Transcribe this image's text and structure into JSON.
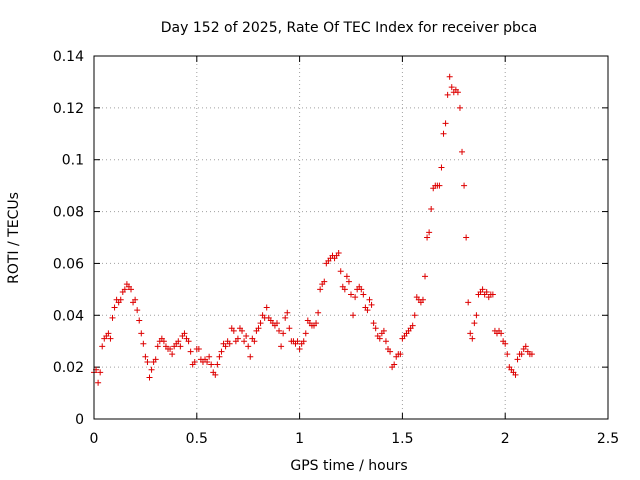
{
  "chart_data": {
    "type": "scatter",
    "title": "Day 152 of 2025, Rate Of TEC Index for receiver pbca",
    "xlabel": "GPS time / hours",
    "ylabel": "ROTI / TECUs",
    "xlim": [
      0,
      2.5
    ],
    "ylim": [
      0,
      0.14
    ],
    "xticks": [
      "0",
      "0.5",
      "1",
      "1.5",
      "2",
      "2.5"
    ],
    "yticks": [
      "0",
      "0.02",
      "0.04",
      "0.06",
      "0.08",
      "0.1",
      "0.12",
      "0.14"
    ],
    "grid": true,
    "marker": "+",
    "marker_color": "#dd0000",
    "series": [
      {
        "name": "ROTI",
        "points": [
          [
            0.0,
            0.018
          ],
          [
            0.01,
            0.019
          ],
          [
            0.02,
            0.014
          ],
          [
            0.03,
            0.018
          ],
          [
            0.04,
            0.028
          ],
          [
            0.05,
            0.031
          ],
          [
            0.06,
            0.032
          ],
          [
            0.07,
            0.033
          ],
          [
            0.08,
            0.031
          ],
          [
            0.09,
            0.039
          ],
          [
            0.1,
            0.043
          ],
          [
            0.11,
            0.046
          ],
          [
            0.12,
            0.045
          ],
          [
            0.13,
            0.046
          ],
          [
            0.14,
            0.049
          ],
          [
            0.15,
            0.05
          ],
          [
            0.16,
            0.052
          ],
          [
            0.17,
            0.051
          ],
          [
            0.18,
            0.05
          ],
          [
            0.19,
            0.045
          ],
          [
            0.2,
            0.046
          ],
          [
            0.21,
            0.042
          ],
          [
            0.22,
            0.038
          ],
          [
            0.23,
            0.033
          ],
          [
            0.24,
            0.029
          ],
          [
            0.25,
            0.024
          ],
          [
            0.26,
            0.022
          ],
          [
            0.27,
            0.016
          ],
          [
            0.28,
            0.019
          ],
          [
            0.29,
            0.022
          ],
          [
            0.3,
            0.023
          ],
          [
            0.31,
            0.028
          ],
          [
            0.32,
            0.03
          ],
          [
            0.33,
            0.031
          ],
          [
            0.34,
            0.03
          ],
          [
            0.35,
            0.028
          ],
          [
            0.36,
            0.027
          ],
          [
            0.37,
            0.027
          ],
          [
            0.38,
            0.025
          ],
          [
            0.39,
            0.028
          ],
          [
            0.4,
            0.029
          ],
          [
            0.41,
            0.03
          ],
          [
            0.42,
            0.028
          ],
          [
            0.43,
            0.032
          ],
          [
            0.44,
            0.033
          ],
          [
            0.45,
            0.031
          ],
          [
            0.46,
            0.03
          ],
          [
            0.47,
            0.026
          ],
          [
            0.48,
            0.021
          ],
          [
            0.49,
            0.022
          ],
          [
            0.5,
            0.027
          ],
          [
            0.51,
            0.027
          ],
          [
            0.52,
            0.023
          ],
          [
            0.53,
            0.022
          ],
          [
            0.54,
            0.023
          ],
          [
            0.55,
            0.022
          ],
          [
            0.56,
            0.024
          ],
          [
            0.57,
            0.021
          ],
          [
            0.58,
            0.018
          ],
          [
            0.59,
            0.017
          ],
          [
            0.6,
            0.021
          ],
          [
            0.61,
            0.024
          ],
          [
            0.62,
            0.026
          ],
          [
            0.63,
            0.029
          ],
          [
            0.64,
            0.028
          ],
          [
            0.65,
            0.03
          ],
          [
            0.66,
            0.029
          ],
          [
            0.67,
            0.035
          ],
          [
            0.68,
            0.034
          ],
          [
            0.69,
            0.03
          ],
          [
            0.7,
            0.031
          ],
          [
            0.71,
            0.035
          ],
          [
            0.72,
            0.034
          ],
          [
            0.73,
            0.03
          ],
          [
            0.74,
            0.032
          ],
          [
            0.75,
            0.028
          ],
          [
            0.76,
            0.024
          ],
          [
            0.77,
            0.031
          ],
          [
            0.78,
            0.03
          ],
          [
            0.79,
            0.034
          ],
          [
            0.8,
            0.035
          ],
          [
            0.81,
            0.037
          ],
          [
            0.82,
            0.04
          ],
          [
            0.83,
            0.039
          ],
          [
            0.84,
            0.043
          ],
          [
            0.85,
            0.039
          ],
          [
            0.86,
            0.038
          ],
          [
            0.87,
            0.037
          ],
          [
            0.88,
            0.036
          ],
          [
            0.89,
            0.037
          ],
          [
            0.9,
            0.034
          ],
          [
            0.91,
            0.028
          ],
          [
            0.92,
            0.033
          ],
          [
            0.93,
            0.039
          ],
          [
            0.94,
            0.041
          ],
          [
            0.95,
            0.035
          ],
          [
            0.96,
            0.03
          ],
          [
            0.97,
            0.03
          ],
          [
            0.98,
            0.029
          ],
          [
            0.99,
            0.03
          ],
          [
            1.0,
            0.027
          ],
          [
            1.01,
            0.029
          ],
          [
            1.02,
            0.03
          ],
          [
            1.03,
            0.033
          ],
          [
            1.04,
            0.038
          ],
          [
            1.05,
            0.037
          ],
          [
            1.06,
            0.036
          ],
          [
            1.07,
            0.036
          ],
          [
            1.08,
            0.037
          ],
          [
            1.09,
            0.041
          ],
          [
            1.1,
            0.05
          ],
          [
            1.11,
            0.052
          ],
          [
            1.12,
            0.053
          ],
          [
            1.13,
            0.06
          ],
          [
            1.14,
            0.061
          ],
          [
            1.15,
            0.062
          ],
          [
            1.16,
            0.063
          ],
          [
            1.17,
            0.062
          ],
          [
            1.18,
            0.063
          ],
          [
            1.19,
            0.064
          ],
          [
            1.2,
            0.057
          ],
          [
            1.21,
            0.051
          ],
          [
            1.22,
            0.05
          ],
          [
            1.23,
            0.055
          ],
          [
            1.24,
            0.053
          ],
          [
            1.25,
            0.048
          ],
          [
            1.26,
            0.04
          ],
          [
            1.27,
            0.047
          ],
          [
            1.28,
            0.05
          ],
          [
            1.29,
            0.051
          ],
          [
            1.3,
            0.05
          ],
          [
            1.31,
            0.048
          ],
          [
            1.32,
            0.043
          ],
          [
            1.33,
            0.042
          ],
          [
            1.34,
            0.046
          ],
          [
            1.35,
            0.044
          ],
          [
            1.36,
            0.037
          ],
          [
            1.37,
            0.035
          ],
          [
            1.38,
            0.032
          ],
          [
            1.39,
            0.031
          ],
          [
            1.4,
            0.033
          ],
          [
            1.41,
            0.034
          ],
          [
            1.42,
            0.03
          ],
          [
            1.43,
            0.027
          ],
          [
            1.44,
            0.026
          ],
          [
            1.45,
            0.02
          ],
          [
            1.46,
            0.021
          ],
          [
            1.47,
            0.024
          ],
          [
            1.48,
            0.025
          ],
          [
            1.49,
            0.025
          ],
          [
            1.5,
            0.031
          ],
          [
            1.51,
            0.032
          ],
          [
            1.52,
            0.033
          ],
          [
            1.53,
            0.034
          ],
          [
            1.54,
            0.035
          ],
          [
            1.55,
            0.036
          ],
          [
            1.56,
            0.04
          ],
          [
            1.57,
            0.047
          ],
          [
            1.58,
            0.046
          ],
          [
            1.59,
            0.045
          ],
          [
            1.6,
            0.046
          ],
          [
            1.61,
            0.055
          ],
          [
            1.62,
            0.07
          ],
          [
            1.63,
            0.072
          ],
          [
            1.64,
            0.081
          ],
          [
            1.65,
            0.089
          ],
          [
            1.66,
            0.09
          ],
          [
            1.67,
            0.09
          ],
          [
            1.68,
            0.09
          ],
          [
            1.69,
            0.097
          ],
          [
            1.7,
            0.11
          ],
          [
            1.71,
            0.114
          ],
          [
            1.72,
            0.125
          ],
          [
            1.73,
            0.132
          ],
          [
            1.74,
            0.128
          ],
          [
            1.75,
            0.126
          ],
          [
            1.76,
            0.127
          ],
          [
            1.77,
            0.126
          ],
          [
            1.78,
            0.12
          ],
          [
            1.79,
            0.103
          ],
          [
            1.8,
            0.09
          ],
          [
            1.81,
            0.07
          ],
          [
            1.82,
            0.045
          ],
          [
            1.83,
            0.033
          ],
          [
            1.84,
            0.031
          ],
          [
            1.85,
            0.037
          ],
          [
            1.86,
            0.04
          ],
          [
            1.87,
            0.048
          ],
          [
            1.88,
            0.049
          ],
          [
            1.89,
            0.05
          ],
          [
            1.9,
            0.048
          ],
          [
            1.91,
            0.049
          ],
          [
            1.92,
            0.047
          ],
          [
            1.93,
            0.048
          ],
          [
            1.94,
            0.048
          ],
          [
            1.95,
            0.034
          ],
          [
            1.96,
            0.033
          ],
          [
            1.97,
            0.034
          ],
          [
            1.98,
            0.033
          ],
          [
            1.99,
            0.03
          ],
          [
            2.0,
            0.029
          ],
          [
            2.01,
            0.025
          ],
          [
            2.02,
            0.02
          ],
          [
            2.03,
            0.019
          ],
          [
            2.04,
            0.018
          ],
          [
            2.05,
            0.017
          ],
          [
            2.06,
            0.023
          ],
          [
            2.07,
            0.025
          ],
          [
            2.08,
            0.025
          ],
          [
            2.09,
            0.027
          ],
          [
            2.1,
            0.028
          ],
          [
            2.11,
            0.026
          ],
          [
            2.12,
            0.025
          ],
          [
            2.13,
            0.025
          ]
        ]
      }
    ]
  }
}
